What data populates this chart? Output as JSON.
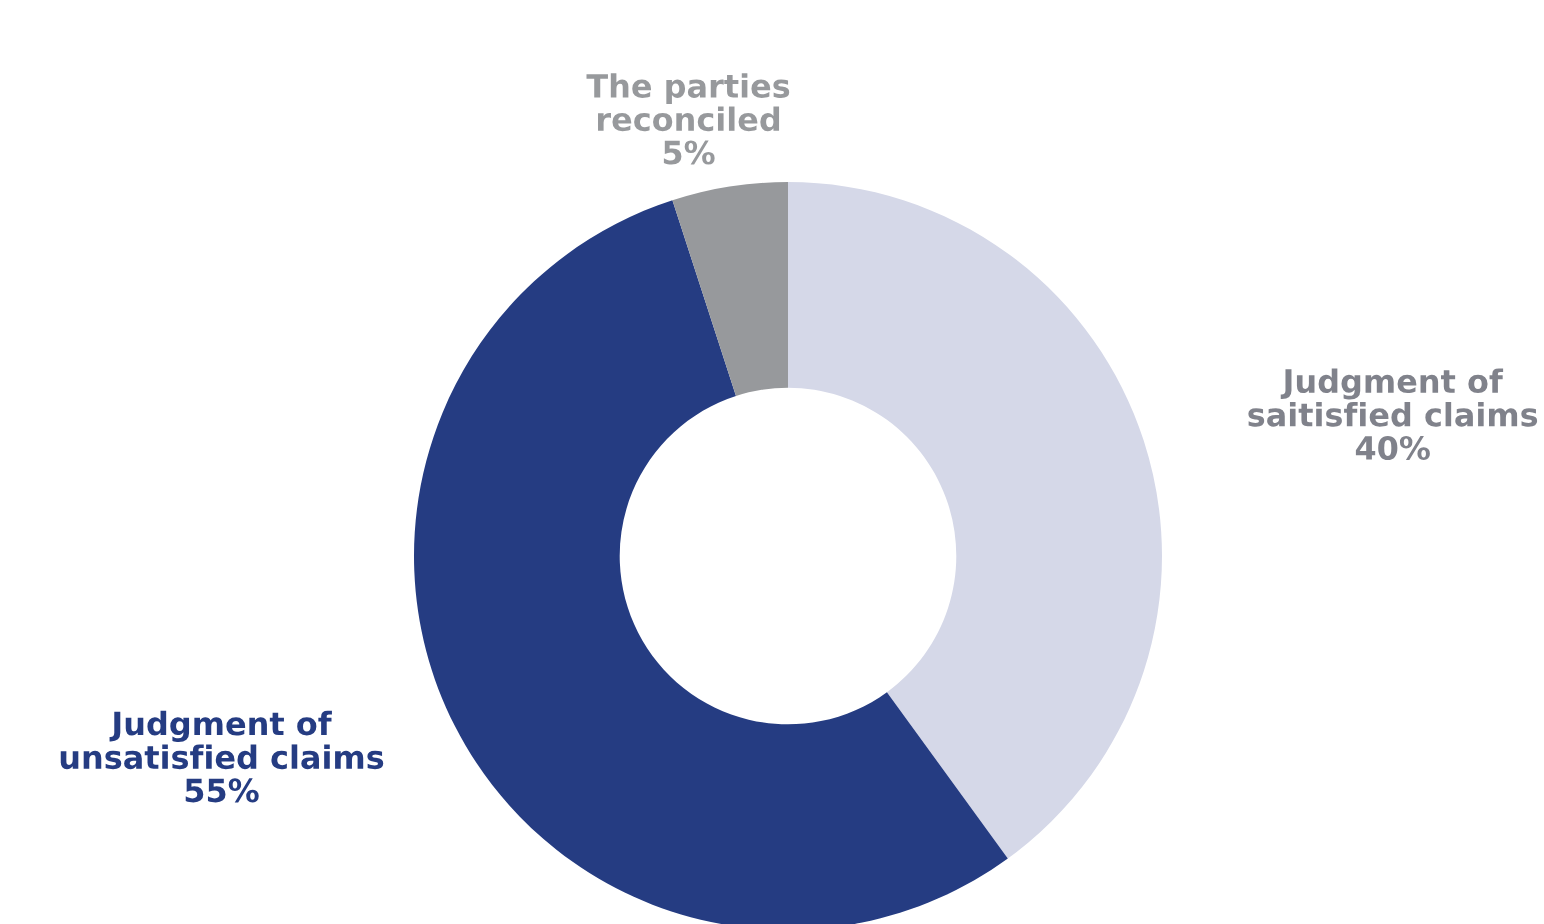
{
  "chart_data": {
    "type": "donut",
    "categories": [
      "Judgment of\nsaitisfied claims",
      "Judgment of\nunsatisfied claims",
      "The parties\nreconciled"
    ],
    "values": [
      40,
      55,
      5
    ],
    "colors": [
      "#d5d8e8",
      "#253c82",
      "#97999c"
    ],
    "value_labels": [
      "40%",
      "55%",
      "5%"
    ],
    "data_labels": true,
    "legend": false
  }
}
